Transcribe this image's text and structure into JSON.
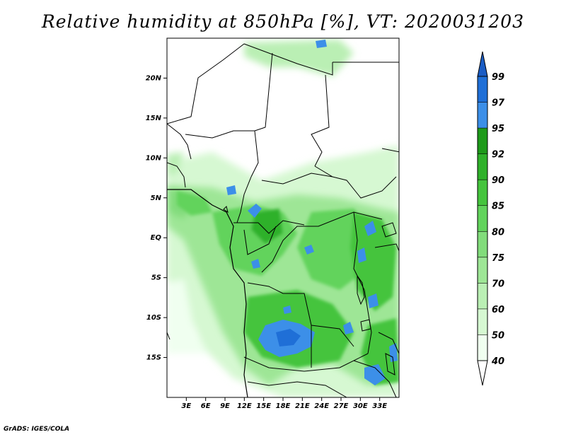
{
  "title": "Relative humidity at 850hPa [%], VT: 2020031203",
  "credit": "GrADS: IGES/COLA",
  "map": {
    "lon_range": [
      0,
      36
    ],
    "lat_range": [
      -20,
      25
    ],
    "lat_ticks": [
      {
        "value": 20,
        "label": "20N"
      },
      {
        "value": 15,
        "label": "15N"
      },
      {
        "value": 10,
        "label": "10N"
      },
      {
        "value": 5,
        "label": "5N"
      },
      {
        "value": 0,
        "label": "EQ"
      },
      {
        "value": -5,
        "label": "5S"
      },
      {
        "value": -10,
        "label": "10S"
      },
      {
        "value": -15,
        "label": "15S"
      }
    ],
    "lon_ticks": [
      {
        "value": 3,
        "label": "3E"
      },
      {
        "value": 6,
        "label": "6E"
      },
      {
        "value": 9,
        "label": "9E"
      },
      {
        "value": 12,
        "label": "12E"
      },
      {
        "value": 15,
        "label": "15E"
      },
      {
        "value": 18,
        "label": "18E"
      },
      {
        "value": 21,
        "label": "21E"
      },
      {
        "value": 24,
        "label": "24E"
      },
      {
        "value": 27,
        "label": "27E"
      },
      {
        "value": 30,
        "label": "30E"
      },
      {
        "value": 33,
        "label": "33E"
      }
    ]
  },
  "colorbar": {
    "levels": [
      {
        "label": "40",
        "color": "#f0fff0"
      },
      {
        "label": "50",
        "color": "#d6f8d2"
      },
      {
        "label": "60",
        "color": "#baefb4"
      },
      {
        "label": "70",
        "color": "#9ee696"
      },
      {
        "label": "75",
        "color": "#82dc7b"
      },
      {
        "label": "80",
        "color": "#62d35c"
      },
      {
        "label": "85",
        "color": "#45c43d"
      },
      {
        "label": "90",
        "color": "#2fb12a"
      },
      {
        "label": "92",
        "color": "#1e9a1a"
      },
      {
        "label": "95",
        "color": "#3c8fe8"
      },
      {
        "label": "97",
        "color": "#1f6fd7"
      },
      {
        "label": "99",
        "color": "#1258c0"
      }
    ],
    "below_color": "#ffffff",
    "above_color": "#1a5cc4"
  }
}
